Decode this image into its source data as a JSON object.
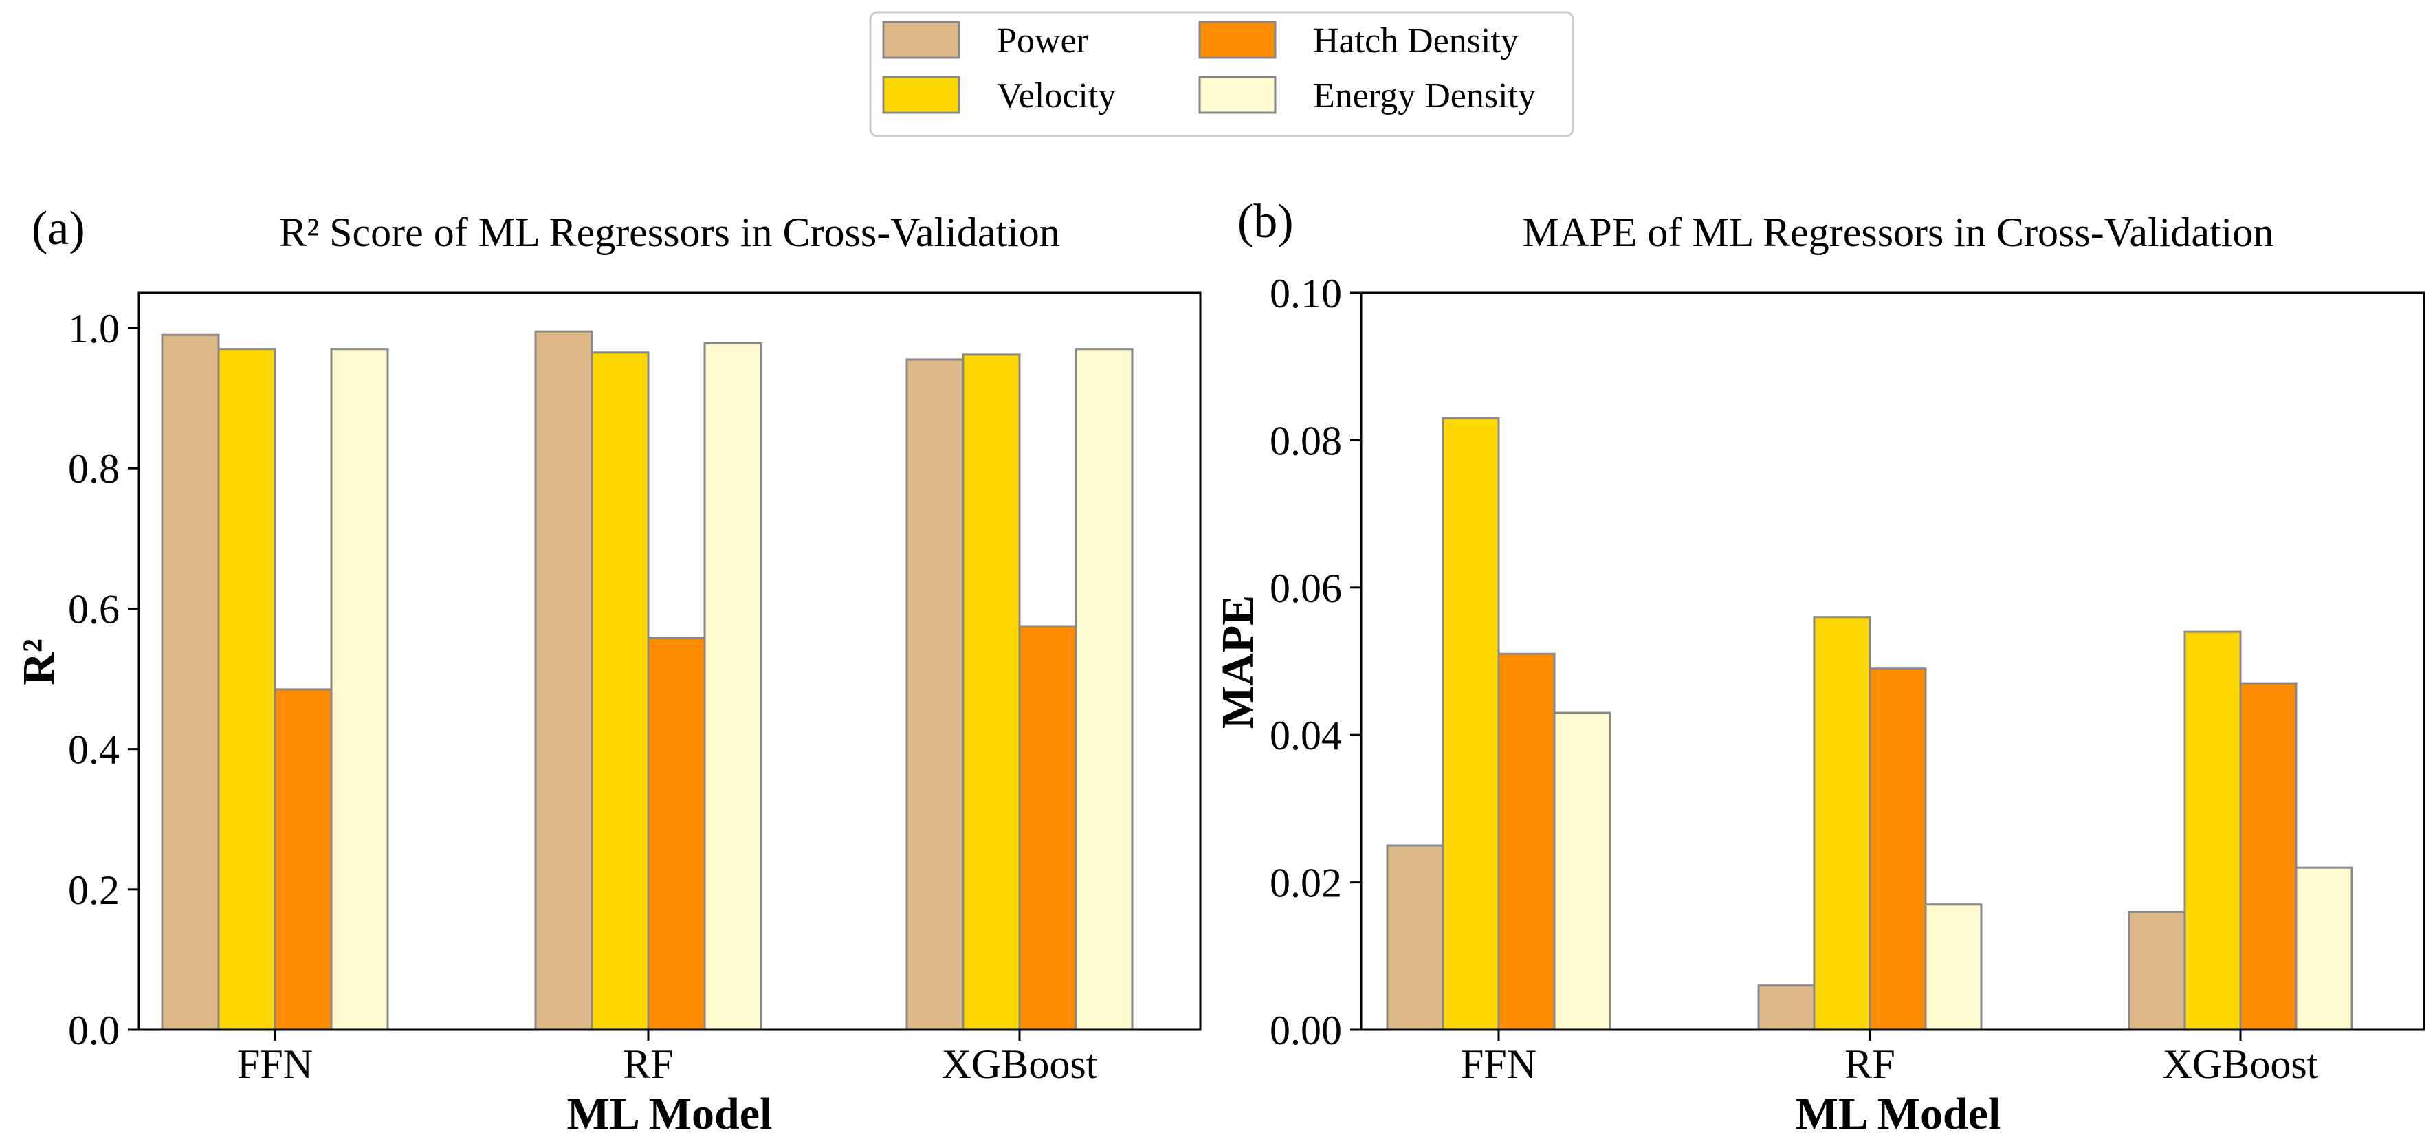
{
  "legend": {
    "entries": [
      {
        "name": "Power",
        "color": "#DEB887"
      },
      {
        "name": "Velocity",
        "color": "#FFD700"
      },
      {
        "name": "Hatch Density",
        "color": "#FF8C00"
      },
      {
        "name": "Energy Density",
        "color": "#FFFACD"
      }
    ]
  },
  "chart_data": [
    {
      "type": "bar",
      "panel_label": "(a)",
      "title": "R² Score of ML Regressors in Cross-Validation",
      "xlabel": "ML Model",
      "ylabel": "R²",
      "categories": [
        "FFN",
        "RF",
        "XGBoost"
      ],
      "ylim": [
        0,
        1.05
      ],
      "yticks": [
        0.0,
        0.2,
        0.4,
        0.6,
        0.8,
        1.0
      ],
      "ytick_labels": [
        "0.0",
        "0.2",
        "0.4",
        "0.6",
        "0.8",
        "1.0"
      ],
      "series": [
        {
          "name": "Power",
          "color": "#DEB887",
          "values": [
            0.99,
            0.995,
            0.955
          ]
        },
        {
          "name": "Velocity",
          "color": "#FFD700",
          "values": [
            0.97,
            0.965,
            0.962
          ]
        },
        {
          "name": "Hatch Density",
          "color": "#FF8C00",
          "values": [
            0.485,
            0.558,
            0.575
          ]
        },
        {
          "name": "Energy Density",
          "color": "#FFFACD",
          "values": [
            0.97,
            0.978,
            0.97
          ]
        }
      ]
    },
    {
      "type": "bar",
      "panel_label": "(b)",
      "title": "MAPE of ML Regressors in Cross-Validation",
      "xlabel": "ML Model",
      "ylabel": "MAPE",
      "categories": [
        "FFN",
        "RF",
        "XGBoost"
      ],
      "ylim": [
        0,
        0.1
      ],
      "yticks": [
        0.0,
        0.02,
        0.04,
        0.06,
        0.08,
        0.1
      ],
      "ytick_labels": [
        "0.00",
        "0.02",
        "0.04",
        "0.06",
        "0.08",
        "0.10"
      ],
      "series": [
        {
          "name": "Power",
          "color": "#DEB887",
          "values": [
            0.025,
            0.006,
            0.016
          ]
        },
        {
          "name": "Velocity",
          "color": "#FFD700",
          "values": [
            0.083,
            0.056,
            0.054
          ]
        },
        {
          "name": "Hatch Density",
          "color": "#FF8C00",
          "values": [
            0.051,
            0.049,
            0.047
          ]
        },
        {
          "name": "Energy Density",
          "color": "#FFFACD",
          "values": [
            0.043,
            0.017,
            0.022
          ]
        }
      ]
    }
  ]
}
